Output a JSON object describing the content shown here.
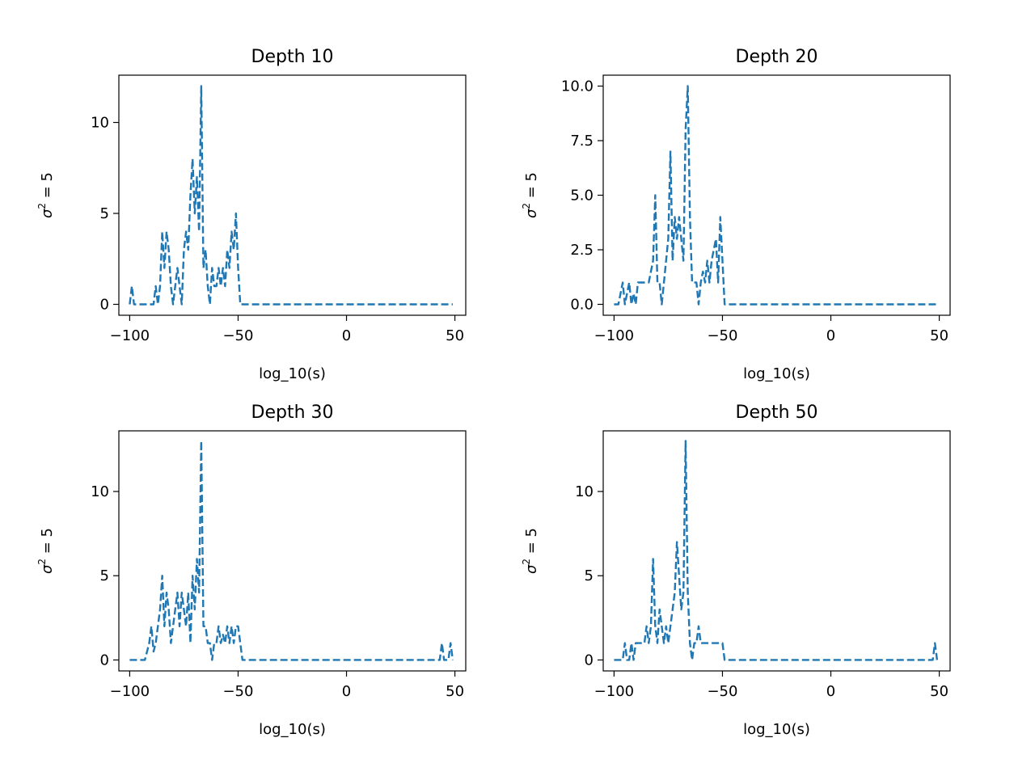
{
  "chart_data": [
    {
      "type": "line",
      "title": "Depth 10",
      "xlabel": "log_10(s)",
      "ylabel_main": "σ",
      "ylabel_sup": "2",
      "ylabel_rest": " = 5",
      "xlim": [
        -105,
        55
      ],
      "ylim": [
        -0.6,
        12.6
      ],
      "xticks": [
        -100,
        -50,
        0,
        50
      ],
      "xtick_labels": [
        "−100",
        "−50",
        "0",
        "50"
      ],
      "yticks": [
        0,
        5,
        10
      ],
      "ytick_labels": [
        "0",
        "5",
        "10"
      ],
      "grid": false,
      "series": [
        {
          "color": "#1f77b4",
          "x": [
            -100,
            -99,
            -98,
            -97,
            -96,
            -95,
            -94,
            -93,
            -92,
            -91,
            -90,
            -89,
            -88,
            -87,
            -86,
            -85,
            -84,
            -83,
            -82,
            -81,
            -80,
            -79,
            -78,
            -77,
            -76,
            -75,
            -74,
            -73,
            -72,
            -71,
            -70,
            -69,
            -68,
            -67,
            -66,
            -65,
            -64,
            -63,
            -62,
            -61,
            -60,
            -59,
            -58,
            -57,
            -56,
            -55,
            -54,
            -53,
            -52,
            -51,
            -50,
            -49,
            -48,
            49
          ],
          "y": [
            0,
            1,
            0,
            0,
            0,
            0,
            0,
            0,
            0,
            0,
            0,
            0,
            1,
            0,
            1,
            4,
            2,
            4,
            3,
            1,
            0,
            1,
            2,
            1,
            0,
            3,
            4,
            3,
            6,
            8,
            5,
            7,
            4,
            12,
            2,
            3,
            1,
            0,
            2,
            1,
            1,
            2,
            1,
            2,
            1,
            3,
            2,
            4,
            3,
            5,
            2,
            0,
            0,
            0
          ]
        }
      ]
    },
    {
      "type": "line",
      "title": "Depth 20",
      "xlabel": "log_10(s)",
      "ylabel_main": "σ",
      "ylabel_sup": "2",
      "ylabel_rest": " = 5",
      "xlim": [
        -105,
        55
      ],
      "ylim": [
        -0.5,
        10.5
      ],
      "xticks": [
        -100,
        -50,
        0,
        50
      ],
      "xtick_labels": [
        "−100",
        "−50",
        "0",
        "50"
      ],
      "yticks": [
        0,
        2.5,
        5,
        7.5,
        10
      ],
      "ytick_labels": [
        "0.0",
        "2.5",
        "5.0",
        "7.5",
        "10.0"
      ],
      "grid": false,
      "series": [
        {
          "color": "#1f77b4",
          "x": [
            -100,
            -99,
            -98,
            -97,
            -96,
            -95,
            -94,
            -93,
            -92,
            -91,
            -90,
            -89,
            -88,
            -87,
            -86,
            -85,
            -84,
            -83,
            -82,
            -81,
            -80,
            -79,
            -78,
            -77,
            -76,
            -75,
            -74,
            -73,
            -72,
            -71,
            -70,
            -69,
            -68,
            -67,
            -66,
            -65,
            -64,
            -63,
            -62,
            -61,
            -60,
            -59,
            -58,
            -57,
            -56,
            -55,
            -54,
            -53,
            -52,
            -51,
            -50,
            -49,
            -48,
            49
          ],
          "y": [
            0,
            0,
            0,
            0.5,
            1,
            0,
            0.5,
            1,
            0,
            0.5,
            0,
            1,
            1,
            1,
            1,
            1,
            1,
            1.5,
            2,
            5,
            1,
            1,
            0,
            1,
            2,
            3,
            7,
            2,
            4,
            3,
            4,
            3,
            2,
            8,
            10,
            4,
            1,
            1,
            1,
            0,
            1,
            1.5,
            1,
            2,
            1,
            2,
            2.5,
            3,
            1,
            4,
            2,
            0,
            0,
            0
          ]
        }
      ]
    },
    {
      "type": "line",
      "title": "Depth 30",
      "xlabel": "log_10(s)",
      "ylabel_main": "σ",
      "ylabel_sup": "2",
      "ylabel_rest": " = 5",
      "xlim": [
        -105,
        55
      ],
      "ylim": [
        -0.65,
        13.6
      ],
      "xticks": [
        -100,
        -50,
        0,
        50
      ],
      "xtick_labels": [
        "−100",
        "−50",
        "0",
        "50"
      ],
      "yticks": [
        0,
        5,
        10
      ],
      "ytick_labels": [
        "0",
        "5",
        "10"
      ],
      "grid": false,
      "series": [
        {
          "color": "#1f77b4",
          "x": [
            -100,
            -99,
            -98,
            -97,
            -96,
            -95,
            -94,
            -93,
            -92,
            -91,
            -90,
            -89,
            -88,
            -87,
            -86,
            -85,
            -84,
            -83,
            -82,
            -81,
            -80,
            -79,
            -78,
            -77,
            -76,
            -75,
            -74,
            -73,
            -72,
            -71,
            -70,
            -69,
            -68,
            -67,
            -66,
            -65,
            -64,
            -63,
            -62,
            -61,
            -60,
            -59,
            -58,
            -57,
            -56,
            -55,
            -54,
            -53,
            -52,
            -51,
            -50,
            -49,
            -48,
            -47,
            40,
            41,
            42,
            43,
            44,
            45,
            46,
            47,
            48,
            49
          ],
          "y": [
            0,
            0,
            0,
            0,
            0,
            0,
            0,
            0,
            0.5,
            1,
            2,
            0.5,
            1,
            2,
            3,
            5,
            2,
            4,
            3,
            1,
            2,
            3,
            4,
            2,
            4,
            3,
            2,
            4,
            1,
            5,
            3,
            6,
            4,
            13,
            2,
            2,
            1,
            1,
            0,
            1,
            1,
            2,
            1,
            1.5,
            1,
            2,
            1,
            2,
            1,
            2,
            2,
            1,
            0,
            0,
            0,
            0,
            0,
            0,
            1,
            0,
            0,
            0,
            1,
            0
          ]
        }
      ]
    },
    {
      "type": "line",
      "title": "Depth 50",
      "xlabel": "log_10(s)",
      "ylabel_main": "σ",
      "ylabel_sup": "2",
      "ylabel_rest": " = 5",
      "xlim": [
        -105,
        55
      ],
      "ylim": [
        -0.65,
        13.6
      ],
      "xticks": [
        -100,
        -50,
        0,
        50
      ],
      "xtick_labels": [
        "−100",
        "−50",
        "0",
        "50"
      ],
      "yticks": [
        0,
        5,
        10
      ],
      "ytick_labels": [
        "0",
        "5",
        "10"
      ],
      "grid": false,
      "series": [
        {
          "color": "#1f77b4",
          "x": [
            -100,
            -99,
            -98,
            -97,
            -96,
            -95,
            -94,
            -93,
            -92,
            -91,
            -90,
            -89,
            -88,
            -87,
            -86,
            -85,
            -84,
            -83,
            -82,
            -81,
            -80,
            -79,
            -78,
            -77,
            -76,
            -75,
            -74,
            -73,
            -72,
            -71,
            -70,
            -69,
            -68,
            -67,
            -66,
            -65,
            -64,
            -63,
            -62,
            -61,
            -60,
            -59,
            -58,
            -57,
            -56,
            -55,
            -54,
            -53,
            -52,
            -51,
            -50,
            -49,
            -48,
            -47,
            46,
            47,
            48,
            49
          ],
          "y": [
            0,
            0,
            0,
            0,
            0,
            1,
            0,
            0,
            1,
            0,
            1,
            1,
            1,
            1,
            1,
            2,
            1,
            2,
            6,
            2,
            1,
            3,
            2,
            1,
            2,
            1,
            2,
            3,
            4,
            7,
            5,
            3,
            4,
            13,
            4,
            1,
            0,
            1,
            1,
            2,
            1,
            1,
            1,
            1,
            1,
            1,
            1,
            1,
            1,
            1,
            1,
            0,
            0,
            0,
            0,
            0,
            1,
            0
          ]
        }
      ]
    }
  ]
}
